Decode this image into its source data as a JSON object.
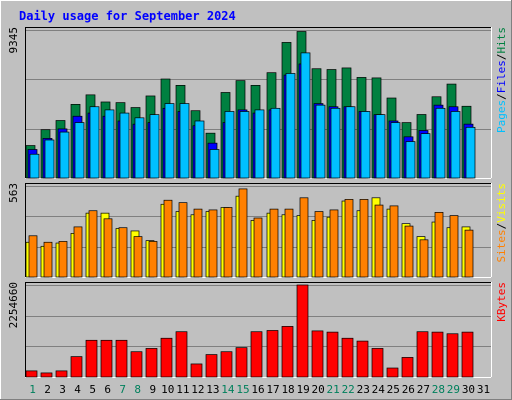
{
  "chart_data": [
    {
      "type": "bar",
      "title": "Daily usage for September 2024",
      "panel": "hits-files-pages",
      "y_max_label": "9345",
      "ylim": [
        0,
        9345
      ],
      "categories": [
        "1",
        "2",
        "3",
        "4",
        "5",
        "6",
        "7",
        "8",
        "9",
        "10",
        "11",
        "12",
        "13",
        "14",
        "15",
        "16",
        "17",
        "18",
        "19",
        "20",
        "21",
        "22",
        "23",
        "24",
        "25",
        "26",
        "27",
        "28",
        "29",
        "30",
        "31"
      ],
      "weekend_days": [
        "1",
        "7",
        "8",
        "14",
        "15",
        "21",
        "22",
        "28",
        "29"
      ],
      "legend": [
        {
          "label": "Pages",
          "color": "#00c0ff"
        },
        {
          "label": "/",
          "color": "#000000"
        },
        {
          "label": "Files",
          "color": "#0000ff"
        },
        {
          "label": "/",
          "color": "#000000"
        },
        {
          "label": "Hits",
          "color": "#008040"
        }
      ],
      "series": [
        {
          "name": "Hits",
          "color": "#008040",
          "values": [
            2050,
            3050,
            3630,
            4650,
            5250,
            4800,
            4760,
            4450,
            5180,
            6250,
            5850,
            4250,
            2830,
            5400,
            6150,
            5850,
            6650,
            8560,
            9250,
            6900,
            6850,
            6950,
            6350,
            6320,
            5050,
            3500,
            4010,
            5130,
            5930,
            4530,
            0
          ]
        },
        {
          "name": "Files",
          "color": "#0000ff",
          "values": [
            1800,
            2500,
            3100,
            3900,
            4100,
            3900,
            3600,
            3400,
            3500,
            4400,
            4200,
            3300,
            2200,
            3500,
            4300,
            4100,
            4300,
            6500,
            7200,
            4700,
            4500,
            4500,
            4200,
            4000,
            3600,
            2600,
            3000,
            4600,
            4500,
            3400,
            0
          ]
        },
        {
          "name": "Pages",
          "color": "#00c0ff",
          "values": [
            1500,
            2400,
            2900,
            3500,
            4500,
            4300,
            4100,
            3800,
            4000,
            4700,
            4700,
            3600,
            1800,
            4200,
            4200,
            4300,
            4400,
            6600,
            7900,
            4600,
            4400,
            4500,
            4200,
            4000,
            3500,
            2300,
            2800,
            4400,
            4200,
            3200,
            0
          ]
        }
      ]
    },
    {
      "type": "bar",
      "panel": "visits-sites",
      "y_max_label": "563",
      "ylim": [
        0,
        563
      ],
      "legend": [
        {
          "label": "Sites",
          "color": "#ff8000"
        },
        {
          "label": "/",
          "color": "#000000"
        },
        {
          "label": "Visits",
          "color": "#ffff00"
        }
      ],
      "series": [
        {
          "name": "Visits",
          "color": "#ffff00",
          "values": [
            215,
            190,
            210,
            270,
            395,
            395,
            300,
            285,
            225,
            450,
            405,
            385,
            405,
            430,
            500,
            350,
            395,
            385,
            380,
            350,
            370,
            470,
            410,
            490,
            420,
            330,
            250,
            340,
            305,
            310,
            0
          ]
        },
        {
          "name": "Sites",
          "color": "#ff8000",
          "values": [
            255,
            215,
            220,
            310,
            410,
            360,
            305,
            250,
            220,
            475,
            460,
            420,
            415,
            430,
            545,
            365,
            420,
            420,
            490,
            405,
            415,
            480,
            480,
            445,
            440,
            315,
            230,
            400,
            380,
            290,
            0
          ]
        }
      ]
    },
    {
      "type": "bar",
      "panel": "kbytes",
      "y_max_label": "2254660",
      "ylim": [
        0,
        2254660
      ],
      "legend": [
        {
          "label": "KBytes",
          "color": "#ff0000"
        }
      ],
      "series": [
        {
          "name": "KBytes",
          "color": "#ff0000",
          "values": [
            150000,
            100000,
            150000,
            500000,
            900000,
            900000,
            900000,
            620000,
            700000,
            950000,
            1110000,
            320000,
            550000,
            620000,
            720000,
            1110000,
            1140000,
            1240000,
            2254660,
            1130000,
            1100000,
            950000,
            880000,
            700000,
            220000,
            480000,
            1110000,
            1100000,
            1060000,
            1100000,
            0
          ]
        }
      ]
    }
  ]
}
